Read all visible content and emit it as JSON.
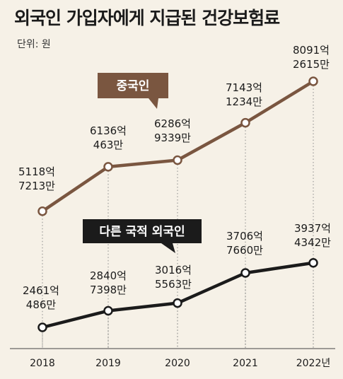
{
  "page": {
    "title": "외국인 가입자에게 지급된 건강보험료",
    "unit": "단위: 원"
  },
  "chart_data": {
    "type": "line",
    "x": [
      "2018",
      "2019",
      "2020",
      "2021",
      "2022년"
    ],
    "ylim": [
      0,
      900000000000
    ],
    "grid": false,
    "series": [
      {
        "name": "중국인",
        "color": "#7a5640",
        "values": [
          511872130000,
          613604630000,
          628693390000,
          714312340000,
          809126150000
        ],
        "labels": [
          [
            "5118억",
            "7213만"
          ],
          [
            "6136억",
            "463만"
          ],
          [
            "6286억",
            "9339만"
          ],
          [
            "7143억",
            "1234만"
          ],
          [
            "8091억",
            "2615만"
          ]
        ]
      },
      {
        "name": "다른 국적 외국인",
        "color": "#1b1b1b",
        "values": [
          246104860000,
          284073980000,
          301655630000,
          370676600000,
          393743420000
        ],
        "labels": [
          [
            "2461억",
            "486만"
          ],
          [
            "2840억",
            "7398만"
          ],
          [
            "3016억",
            "5563만"
          ],
          [
            "3706억",
            "7660만"
          ],
          [
            "3937억",
            "4342만"
          ]
        ]
      }
    ]
  }
}
